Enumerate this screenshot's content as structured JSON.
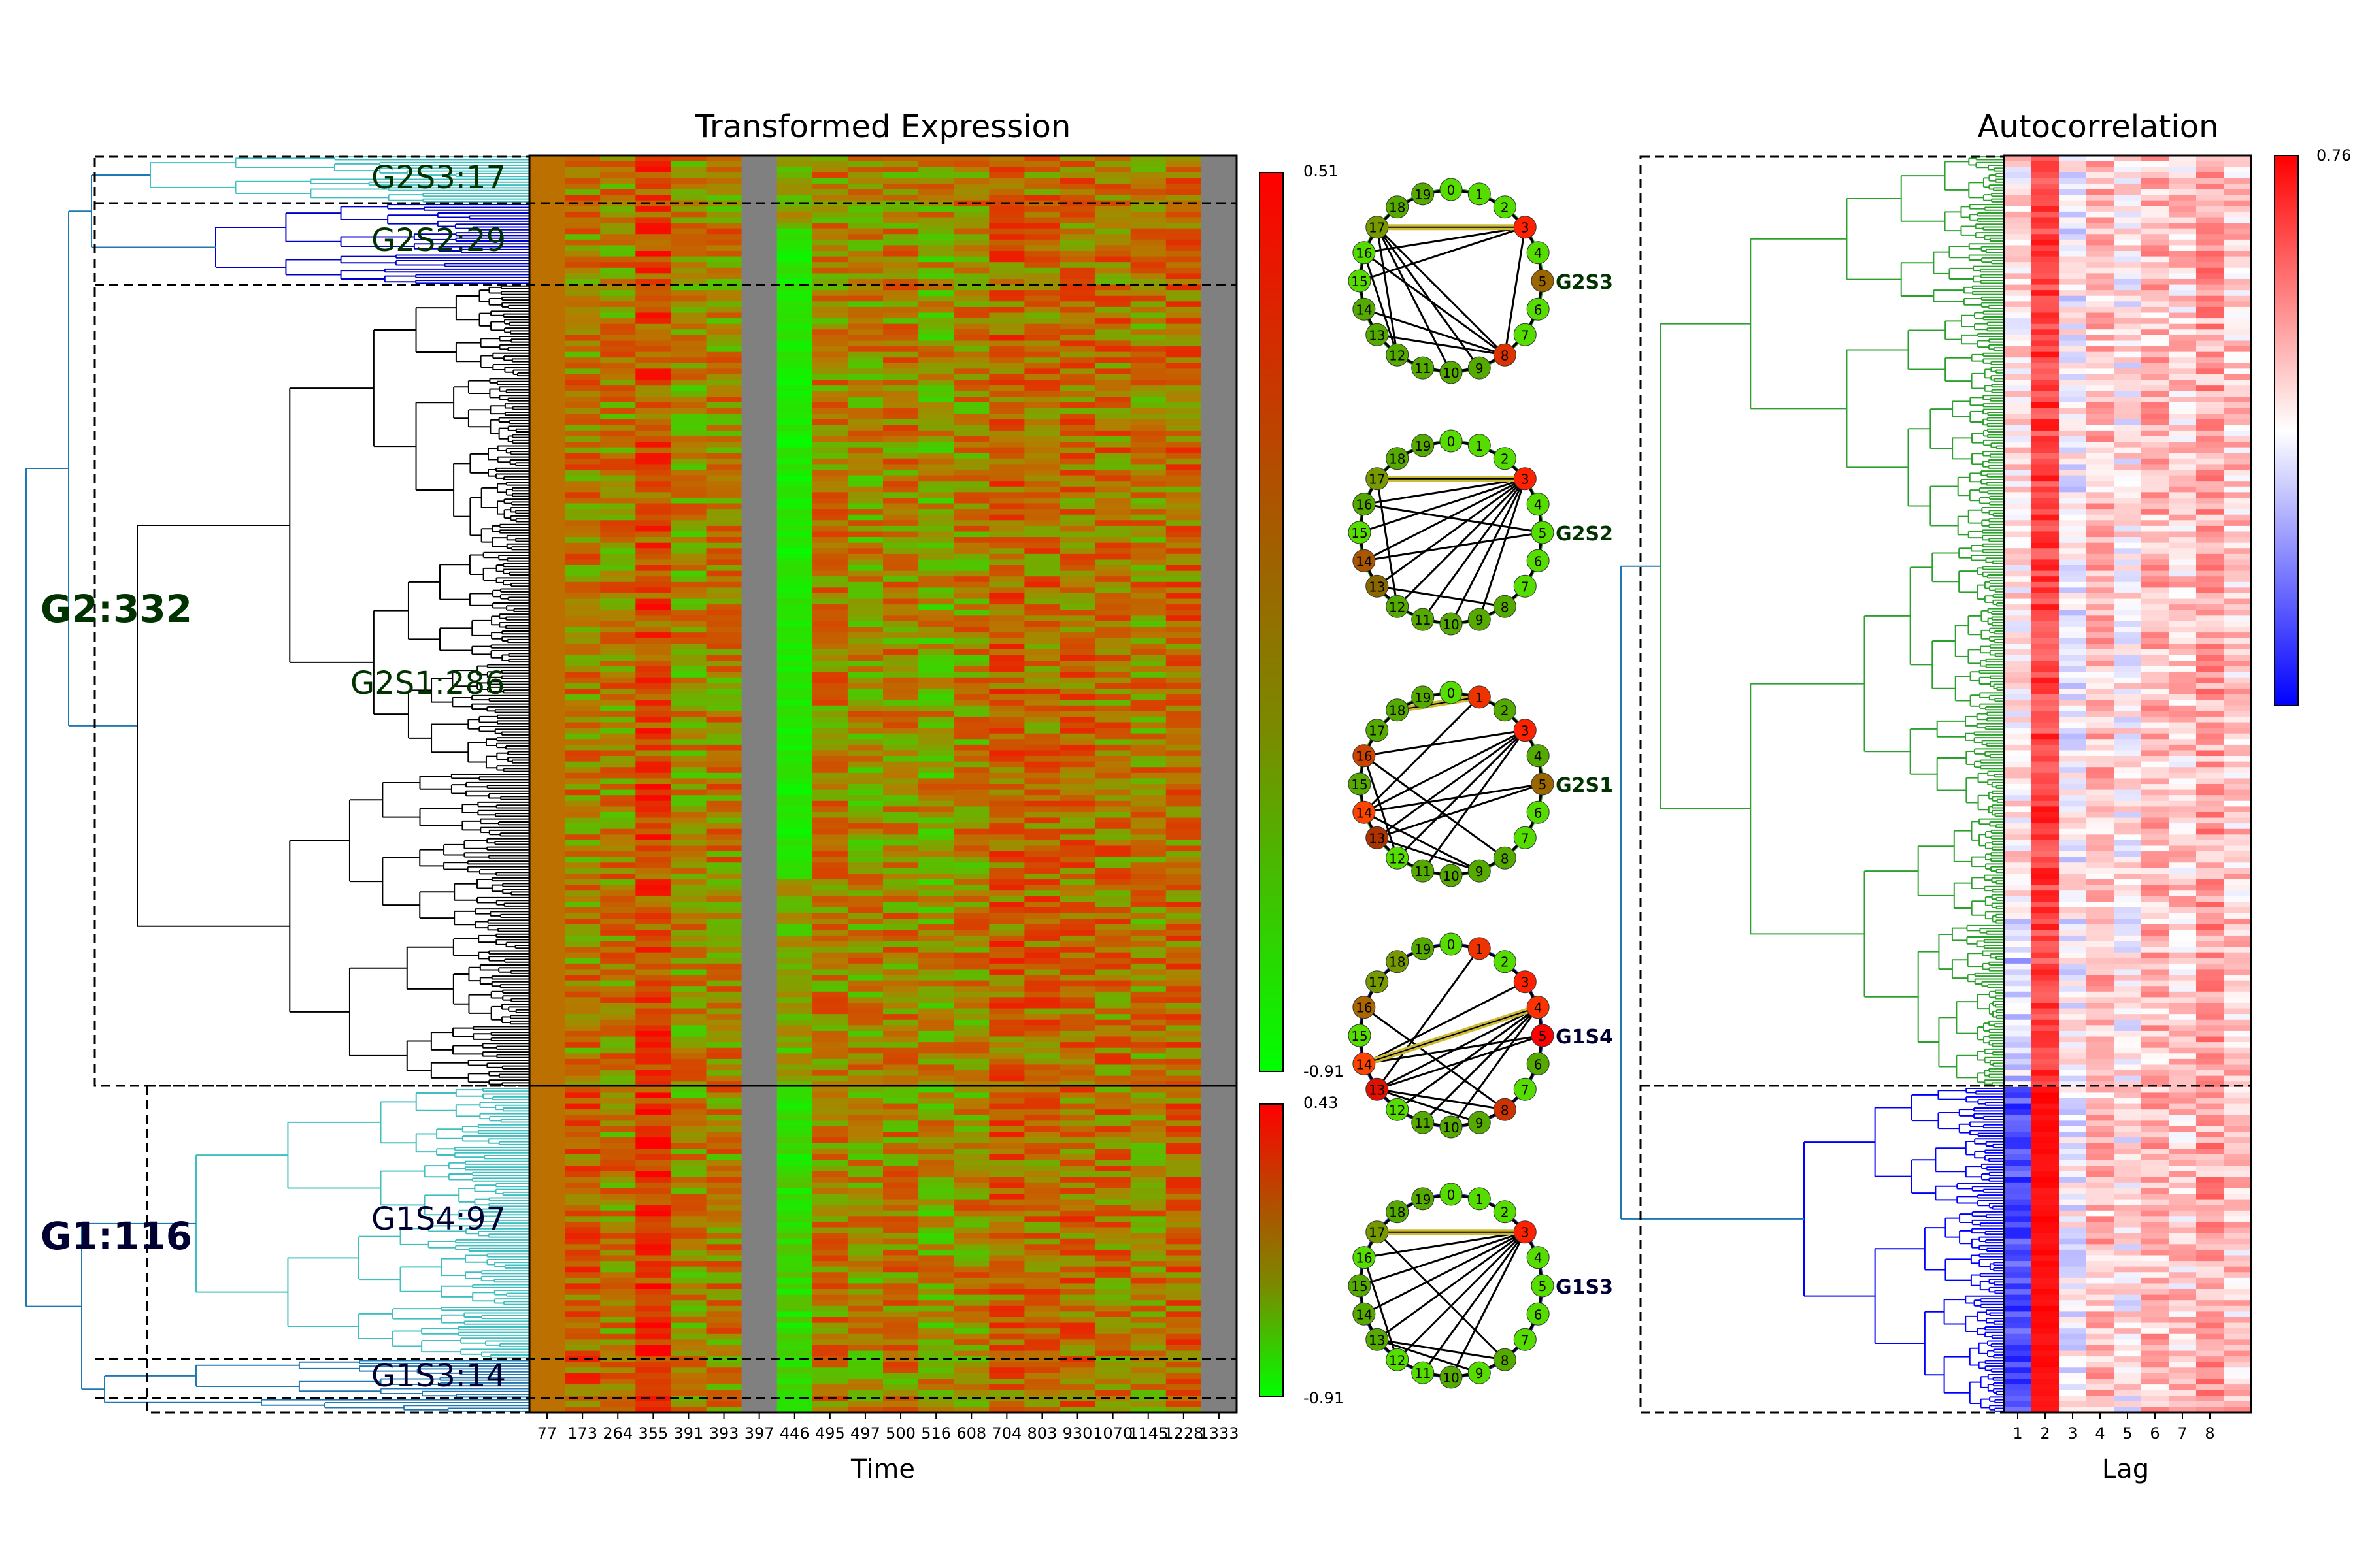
{
  "heatmap_title": "Transformed Expression",
  "auto_title": "Autocorrelation",
  "time_xlabel": "Time",
  "lag_xlabel": "Lag",
  "time_ticks": [
    "77",
    "173",
    "264",
    "355",
    "391",
    "393",
    "397",
    "446",
    "495",
    "497",
    "500",
    "516",
    "608",
    "704",
    "803",
    "930",
    "1070",
    "1145",
    "1228",
    "1333"
  ],
  "lag_ticks": [
    "1",
    "2",
    "3",
    "4",
    "5",
    "6",
    "7",
    "8"
  ],
  "colorbar_top": {
    "max": "0.51",
    "min": "-0.91"
  },
  "colorbar_bottom": {
    "max": "0.43",
    "min": "-0.91"
  },
  "colorbar_auto": {
    "max": "0.76"
  },
  "groups": {
    "g2": "G2:332",
    "g1": "G1:116",
    "g2s3": "G2S3:17",
    "g2s2": "G2S2:29",
    "g2s1": "G2S1:286",
    "g1s4": "G1S4:97",
    "g1s3": "G1S3:14"
  },
  "network_labels": [
    "G2S3",
    "G2S2",
    "G2S1",
    "G1S4",
    "G1S3"
  ],
  "node_numbers": [
    "0",
    "1",
    "2",
    "3",
    "4",
    "5",
    "6",
    "7",
    "8",
    "9",
    "10",
    "11",
    "12",
    "13",
    "14",
    "15",
    "16",
    "17",
    "18",
    "19"
  ],
  "colors": {
    "g2_dendro": "#000000",
    "g2_sub_dendro": "#0000cc",
    "g1_dendro": "#3fbfbf",
    "g1_root": "#1f77b4",
    "auto_g2": "#2ca02c",
    "auto_g1": "#0000ff",
    "heat_high": "#ff0000",
    "heat_mid": "#996600",
    "heat_low": "#00ff00",
    "gray_column": "#808080",
    "g2_text": "#003300",
    "g1_text": "#000033"
  },
  "chart_data": [
    {
      "type": "heatmap",
      "title": "Transformed Expression",
      "xlabel": "Time",
      "categories": [
        "77",
        "173",
        "264",
        "355",
        "391",
        "393",
        "397",
        "446",
        "495",
        "497",
        "500",
        "516",
        "608",
        "704",
        "803",
        "930",
        "1070",
        "1145",
        "1228",
        "1333"
      ],
      "rows": 448,
      "groups": [
        {
          "name": "G2:332",
          "size": 332,
          "subgroups": [
            {
              "name": "G2S3:17",
              "size": 17
            },
            {
              "name": "G2S2:29",
              "size": 29
            },
            {
              "name": "G2S1:286",
              "size": 286
            }
          ]
        },
        {
          "name": "G1:116",
          "size": 116,
          "subgroups": [
            {
              "name": "G1S4:97",
              "size": 97
            },
            {
              "name": "G1S3:14",
              "size": 14
            }
          ]
        }
      ],
      "colorbars": [
        {
          "range": [
            -0.91,
            0.51
          ]
        },
        {
          "range": [
            -0.91,
            0.43
          ]
        }
      ]
    },
    {
      "type": "heatmap",
      "title": "Autocorrelation",
      "xlabel": "Lag",
      "categories": [
        "1",
        "2",
        "3",
        "4",
        "5",
        "6",
        "7",
        "8"
      ],
      "colorbar": {
        "max": 0.76
      }
    }
  ]
}
